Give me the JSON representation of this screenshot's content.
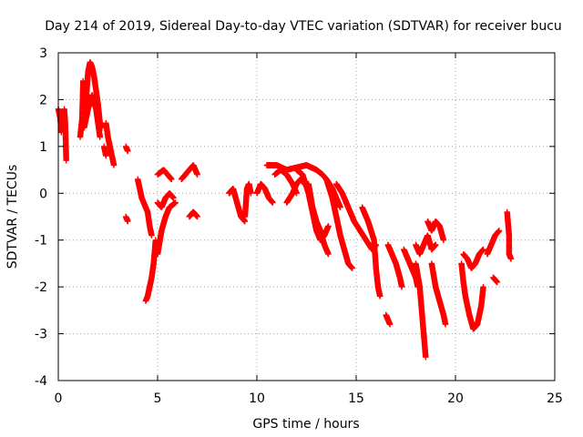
{
  "chart_data": {
    "type": "scatter",
    "title": "Day 214 of 2019, Sidereal Day-to-day VTEC variation (SDTVAR) for receiver bucu",
    "xlabel": "GPS time / hours",
    "ylabel": "SDTVAR / TECUs",
    "xlim": [
      0,
      25
    ],
    "ylim": [
      -4,
      3
    ],
    "xticks": [
      0,
      5,
      10,
      15,
      20,
      25
    ],
    "yticks": [
      -4,
      -3,
      -2,
      -1,
      0,
      1,
      2,
      3
    ],
    "grid": true,
    "marker": "+",
    "color": "#ff0000",
    "segments": [
      [
        [
          0.0,
          1.8
        ],
        [
          0.1,
          1.6
        ],
        [
          0.15,
          1.3
        ]
      ],
      [
        [
          0.3,
          1.8
        ],
        [
          0.35,
          1.5
        ],
        [
          0.4,
          0.7
        ]
      ],
      [
        [
          1.1,
          1.2
        ],
        [
          1.2,
          1.6
        ],
        [
          1.25,
          2.4
        ],
        [
          1.3,
          1.8
        ],
        [
          1.4,
          2.0
        ],
        [
          1.5,
          2.6
        ],
        [
          1.6,
          2.8
        ],
        [
          1.7,
          2.7
        ],
        [
          1.8,
          2.5
        ],
        [
          1.9,
          2.2
        ],
        [
          2.0,
          1.9
        ],
        [
          2.1,
          1.5
        ],
        [
          2.2,
          1.4
        ]
      ],
      [
        [
          1.3,
          1.4
        ],
        [
          1.5,
          1.8
        ],
        [
          1.7,
          2.1
        ],
        [
          1.9,
          1.8
        ],
        [
          2.1,
          1.2
        ]
      ],
      [
        [
          2.4,
          1.5
        ],
        [
          2.5,
          1.2
        ],
        [
          2.6,
          1.0
        ],
        [
          2.7,
          0.8
        ],
        [
          2.8,
          0.6
        ]
      ],
      [
        [
          2.3,
          1.0
        ],
        [
          2.4,
          0.8
        ]
      ],
      [
        [
          3.4,
          1.0
        ],
        [
          3.5,
          0.9
        ]
      ],
      [
        [
          3.4,
          -0.5
        ],
        [
          3.5,
          -0.6
        ]
      ],
      [
        [
          4.0,
          0.3
        ],
        [
          4.2,
          -0.1
        ],
        [
          4.5,
          -0.4
        ],
        [
          4.6,
          -0.7
        ],
        [
          4.7,
          -0.9
        ]
      ],
      [
        [
          4.4,
          -2.3
        ],
        [
          4.5,
          -2.2
        ],
        [
          4.6,
          -2.0
        ],
        [
          4.7,
          -1.8
        ],
        [
          4.8,
          -1.5
        ],
        [
          4.9,
          -1.0
        ]
      ],
      [
        [
          5.0,
          0.4
        ],
        [
          5.3,
          0.5
        ],
        [
          5.5,
          0.4
        ],
        [
          5.7,
          0.3
        ]
      ],
      [
        [
          5.0,
          -0.2
        ],
        [
          5.2,
          -0.3
        ],
        [
          5.4,
          -0.1
        ],
        [
          5.6,
          0.0
        ],
        [
          5.8,
          -0.1
        ]
      ],
      [
        [
          5.0,
          -1.3
        ],
        [
          5.2,
          -0.8
        ],
        [
          5.4,
          -0.5
        ],
        [
          5.6,
          -0.3
        ],
        [
          5.9,
          -0.2
        ]
      ],
      [
        [
          6.2,
          0.3
        ],
        [
          6.4,
          0.4
        ],
        [
          6.6,
          0.5
        ],
        [
          6.8,
          0.6
        ],
        [
          7.0,
          0.4
        ]
      ],
      [
        [
          6.6,
          -0.5
        ],
        [
          6.8,
          -0.4
        ],
        [
          7.0,
          -0.5
        ]
      ],
      [
        [
          8.6,
          0.0
        ],
        [
          8.8,
          0.1
        ],
        [
          9.0,
          -0.2
        ],
        [
          9.2,
          -0.5
        ],
        [
          9.4,
          -0.6
        ]
      ],
      [
        [
          9.4,
          -0.5
        ],
        [
          9.5,
          0.1
        ],
        [
          9.6,
          0.2
        ],
        [
          9.7,
          0.0
        ]
      ],
      [
        [
          10.0,
          0.0
        ],
        [
          10.2,
          0.2
        ],
        [
          10.4,
          0.1
        ],
        [
          10.6,
          -0.1
        ],
        [
          10.8,
          -0.2
        ]
      ],
      [
        [
          10.9,
          0.4
        ],
        [
          11.2,
          0.5
        ],
        [
          11.5,
          0.4
        ],
        [
          11.8,
          0.2
        ],
        [
          12.0,
          0.0
        ]
      ],
      [
        [
          10.5,
          0.6
        ],
        [
          11.0,
          0.6
        ],
        [
          11.5,
          0.5
        ],
        [
          12.0,
          0.55
        ],
        [
          12.5,
          0.6
        ],
        [
          13.0,
          0.5
        ],
        [
          13.3,
          0.4
        ],
        [
          13.5,
          0.3
        ],
        [
          13.8,
          0.1
        ],
        [
          14.0,
          -0.1
        ],
        [
          14.2,
          -0.3
        ]
      ],
      [
        [
          11.5,
          -0.2
        ],
        [
          11.8,
          0.0
        ],
        [
          12.0,
          0.2
        ],
        [
          12.2,
          0.3
        ],
        [
          12.4,
          0.2
        ]
      ],
      [
        [
          12.0,
          0.5
        ],
        [
          12.3,
          0.4
        ],
        [
          12.6,
          0.0
        ],
        [
          12.8,
          -0.4
        ],
        [
          13.0,
          -0.8
        ],
        [
          13.2,
          -1.0
        ],
        [
          13.4,
          -0.9
        ],
        [
          13.6,
          -0.7
        ]
      ],
      [
        [
          12.6,
          0.2
        ],
        [
          12.8,
          -0.3
        ],
        [
          13.0,
          -0.6
        ],
        [
          13.2,
          -0.8
        ],
        [
          13.4,
          -1.1
        ],
        [
          13.6,
          -1.3
        ]
      ],
      [
        [
          13.5,
          0.3
        ],
        [
          13.8,
          -0.1
        ],
        [
          14.0,
          -0.5
        ],
        [
          14.2,
          -0.9
        ],
        [
          14.4,
          -1.2
        ],
        [
          14.6,
          -1.5
        ],
        [
          14.8,
          -1.6
        ]
      ],
      [
        [
          14.0,
          0.2
        ],
        [
          14.3,
          0.0
        ],
        [
          14.6,
          -0.3
        ],
        [
          14.9,
          -0.6
        ],
        [
          15.2,
          -0.8
        ],
        [
          15.5,
          -1.0
        ],
        [
          15.8,
          -1.2
        ],
        [
          16.0,
          -1.1
        ]
      ],
      [
        [
          15.3,
          -0.3
        ],
        [
          15.6,
          -0.6
        ],
        [
          15.9,
          -1.0
        ],
        [
          16.0,
          -1.6
        ],
        [
          16.1,
          -2.0
        ],
        [
          16.2,
          -2.2
        ]
      ],
      [
        [
          16.5,
          -2.6
        ],
        [
          16.6,
          -2.7
        ],
        [
          16.7,
          -2.8
        ]
      ],
      [
        [
          16.6,
          -1.1
        ],
        [
          16.8,
          -1.3
        ],
        [
          17.0,
          -1.5
        ],
        [
          17.2,
          -1.8
        ],
        [
          17.3,
          -2.0
        ]
      ],
      [
        [
          17.4,
          -1.2
        ],
        [
          17.6,
          -1.4
        ],
        [
          17.8,
          -1.6
        ],
        [
          18.0,
          -1.8
        ],
        [
          18.1,
          -2.0
        ]
      ],
      [
        [
          18.0,
          -1.5
        ],
        [
          18.2,
          -2.0
        ],
        [
          18.3,
          -2.5
        ],
        [
          18.4,
          -3.0
        ],
        [
          18.5,
          -3.5
        ]
      ],
      [
        [
          18.0,
          -1.1
        ],
        [
          18.2,
          -1.3
        ],
        [
          18.4,
          -1.1
        ],
        [
          18.6,
          -0.9
        ],
        [
          18.8,
          -1.2
        ],
        [
          19.0,
          -1.1
        ]
      ],
      [
        [
          18.6,
          -0.6
        ],
        [
          18.8,
          -0.8
        ],
        [
          19.0,
          -0.6
        ],
        [
          19.2,
          -0.7
        ],
        [
          19.4,
          -1.0
        ]
      ],
      [
        [
          18.8,
          -1.5
        ],
        [
          19.0,
          -2.0
        ],
        [
          19.2,
          -2.3
        ],
        [
          19.4,
          -2.6
        ],
        [
          19.5,
          -2.8
        ]
      ],
      [
        [
          20.3,
          -1.5
        ],
        [
          20.4,
          -1.9
        ],
        [
          20.5,
          -2.2
        ],
        [
          20.7,
          -2.6
        ],
        [
          20.9,
          -2.9
        ],
        [
          21.1,
          -2.8
        ],
        [
          21.3,
          -2.4
        ],
        [
          21.4,
          -2.0
        ]
      ],
      [
        [
          20.4,
          -1.3
        ],
        [
          20.6,
          -1.4
        ],
        [
          20.8,
          -1.6
        ],
        [
          21.0,
          -1.5
        ],
        [
          21.2,
          -1.3
        ],
        [
          21.4,
          -1.2
        ]
      ],
      [
        [
          21.6,
          -1.3
        ],
        [
          21.8,
          -1.1
        ],
        [
          22.0,
          -0.9
        ],
        [
          22.2,
          -0.8
        ]
      ],
      [
        [
          21.9,
          -1.8
        ],
        [
          22.1,
          -1.9
        ]
      ],
      [
        [
          22.6,
          -0.4
        ],
        [
          22.7,
          -0.9
        ],
        [
          22.7,
          -1.3
        ],
        [
          22.8,
          -1.4
        ]
      ]
    ]
  }
}
